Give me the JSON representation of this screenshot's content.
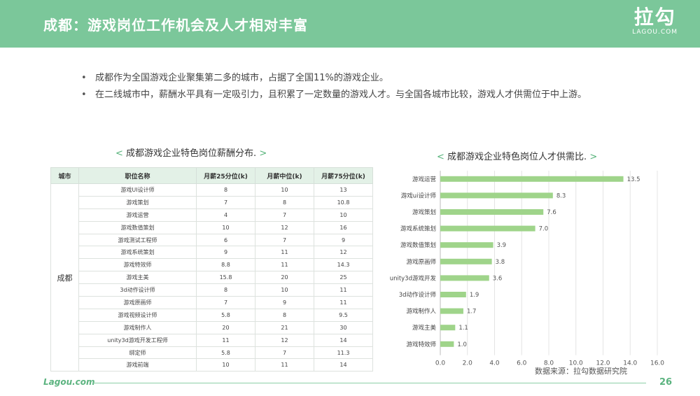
{
  "header": {
    "title": "成都：游戏岗位工作机会及人才相对丰富",
    "logo_cn": "拉勾",
    "logo_en": "LAGOU.COM"
  },
  "bullets": [
    "成都作为全国游戏企业聚集第二多的城市，占据了全国11%的游戏企业。",
    "在二线城市中，薪酬水平具有一定吸引力，且积累了一定数量的游戏人才。与全国各城市比较，游戏人才供需位于中上游。"
  ],
  "table": {
    "title_open": "<",
    "title": "成都游戏企业特色岗位薪酬分布.",
    "title_close": ">",
    "headers": [
      "城市",
      "职位名称",
      "月薪25分位(k)",
      "月薪中位(k)",
      "月薪75分位(k)"
    ],
    "city": "成都",
    "rows": [
      [
        "游戏UI设计师",
        "8",
        "10",
        "13"
      ],
      [
        "游戏策划",
        "7",
        "8",
        "10.8"
      ],
      [
        "游戏运营",
        "4",
        "7",
        "10"
      ],
      [
        "游戏数值策划",
        "10",
        "12",
        "16"
      ],
      [
        "游戏测试工程师",
        "6",
        "7",
        "9"
      ],
      [
        "游戏系统策划",
        "9",
        "11",
        "12"
      ],
      [
        "游戏特效师",
        "8.8",
        "11",
        "14.3"
      ],
      [
        "游戏主美",
        "15.8",
        "20",
        "25"
      ],
      [
        "3d动作设计师",
        "8",
        "10",
        "11"
      ],
      [
        "游戏原画师",
        "7",
        "9",
        "11"
      ],
      [
        "游戏视频设计师",
        "5.8",
        "8",
        "9.5"
      ],
      [
        "游戏制作人",
        "20",
        "21",
        "30"
      ],
      [
        "unity3d游戏开发工程师",
        "11",
        "12",
        "14"
      ],
      [
        "绑定师",
        "5.8",
        "7",
        "11.3"
      ],
      [
        "游戏前端",
        "10",
        "11",
        "14"
      ]
    ]
  },
  "chart_title_open": "<",
  "chart_title": "成都游戏企业特色岗位人才供需比.",
  "chart_title_close": ">",
  "chart_data": {
    "type": "bar",
    "orientation": "horizontal",
    "categories": [
      "游戏运营",
      "游戏ui设计师",
      "游戏策划",
      "游戏系统策划",
      "游戏数值策划",
      "游戏原画师",
      "unity3d游戏开发",
      "3d动作设计师",
      "游戏制作人",
      "游戏主美",
      "游戏特效师"
    ],
    "values": [
      13.5,
      8.3,
      7.6,
      7.0,
      3.9,
      3.8,
      3.6,
      1.9,
      1.7,
      1.1,
      1.0
    ],
    "value_labels": [
      "13.5",
      "8.3",
      "7.6",
      "7.0",
      "3.9",
      "3.8",
      "3.6",
      "1.9",
      "1.7",
      "1.1",
      "1.0"
    ],
    "xlim": [
      0,
      16
    ],
    "x_ticks": [
      "0.0",
      "2.0",
      "4.0",
      "6.0",
      "8.0",
      "10.0",
      "12.0",
      "14.0",
      "16.0"
    ],
    "bar_color": "#9fd48a",
    "grid": true
  },
  "source": "数据来源：拉勾数据研究院",
  "footer": {
    "logo": "Lagou.com",
    "page": "26"
  },
  "colors": {
    "header_bg": "#7bc79a",
    "accent": "#5bb37f"
  }
}
